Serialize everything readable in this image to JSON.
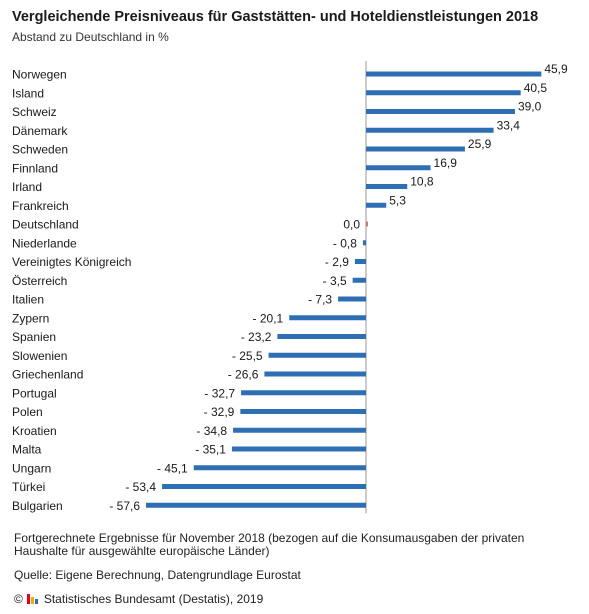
{
  "header": {
    "title": "Vergleichende Preisniveaus für Gaststätten- und Hoteldienstleistungen 2018",
    "subtitle": "Abstand zu Deutschland in %"
  },
  "chart_data": {
    "type": "bar",
    "orientation": "horizontal",
    "title": "Vergleichende Preisniveaus für Gaststätten- und Hoteldienstleistungen 2018",
    "subtitle": "Abstand zu Deutschland in %",
    "categories": [
      "Norwegen",
      "Island",
      "Schweiz",
      "Dänemark",
      "Schweden",
      "Finnland",
      "Irland",
      "Frankreich",
      "Deutschland",
      "Niederlande",
      "Vereinigtes Königreich",
      "Österreich",
      "Italien",
      "Zypern",
      "Spanien",
      "Slowenien",
      "Griechenland",
      "Portugal",
      "Polen",
      "Kroatien",
      "Malta",
      "Ungarn",
      "Türkei",
      "Bulgarien"
    ],
    "values": [
      45.9,
      40.5,
      39.0,
      33.4,
      25.9,
      16.9,
      10.8,
      5.3,
      0.0,
      -0.8,
      -2.9,
      -3.5,
      -7.3,
      -20.1,
      -23.2,
      -25.5,
      -26.6,
      -32.7,
      -32.9,
      -34.8,
      -35.1,
      -45.1,
      -53.4,
      -57.6
    ],
    "value_labels": [
      "45,9",
      "40,5",
      "39,0",
      "33,4",
      "25,9",
      "16,9",
      "10,8",
      "5,3",
      "0,0",
      "- 0,8",
      "- 2,9",
      "- 3,5",
      "- 7,3",
      "- 20,1",
      "- 23,2",
      "- 25,5",
      "- 26,6",
      "- 32,7",
      "- 32,9",
      "- 34,8",
      "- 35,1",
      "- 45,1",
      "- 53,4",
      "- 57,6"
    ],
    "xlim": [
      -57.6,
      45.9
    ],
    "grid": false,
    "bar_color": "#2e6fb3",
    "highlight_color": "#e07070",
    "zero_line_color": "#999999"
  },
  "footer": {
    "note": "Fortgerechnete Ergebnisse für November 2018 (bezogen auf die Konsumausgaben der privaten Haushalte für ausgewählte europäische Länder)",
    "source": "Quelle: Eigene Berechnung, Datengrundlage Eurostat",
    "copyright": "© Statistisches Bundesamt (Destatis), 2019"
  }
}
